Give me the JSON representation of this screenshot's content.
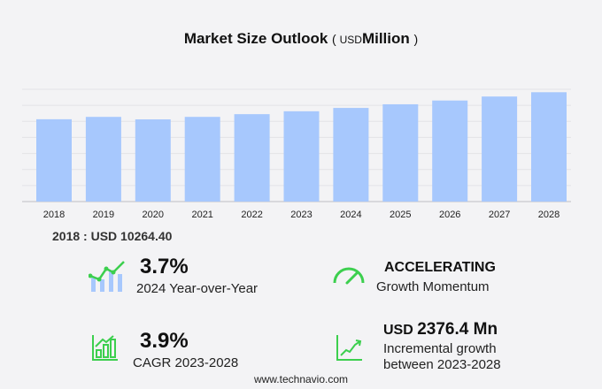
{
  "title": {
    "main": "Market Size Outlook",
    "open": "(",
    "unit_prefix": "USD",
    "unit": "Million",
    "close": ")"
  },
  "chart_data": {
    "type": "bar",
    "categories": [
      "2018",
      "2019",
      "2020",
      "2021",
      "2022",
      "2023",
      "2024",
      "2025",
      "2026",
      "2027",
      "2028"
    ],
    "values": [
      10264.4,
      10560,
      10250,
      10560,
      10900,
      11260,
      11677,
      12130,
      12600,
      13100,
      13636
    ],
    "ylabel": "USD Million",
    "ylim": [
      0,
      14000
    ],
    "grid": true,
    "color": "#a7c8fd"
  },
  "base_value": {
    "label": "2018 : USD  10264.40"
  },
  "stats": {
    "yoy": {
      "value": "3.7%",
      "label": "2024 Year-over-Year"
    },
    "momentum": {
      "value": "ACCELERATING",
      "label": "Growth Momentum"
    },
    "cagr": {
      "value": "3.9%",
      "label": "CAGR 2023-2028"
    },
    "incremental": {
      "prefix": "USD",
      "value": "2376.4 Mn",
      "label1": "Incremental growth",
      "label2": "between 2023-2028"
    }
  },
  "footer": "www.technavio.com",
  "colors": {
    "bar": "#a7c8fd",
    "icon_green": "#3ccf4e",
    "icon_blue": "#a7c8fd"
  }
}
